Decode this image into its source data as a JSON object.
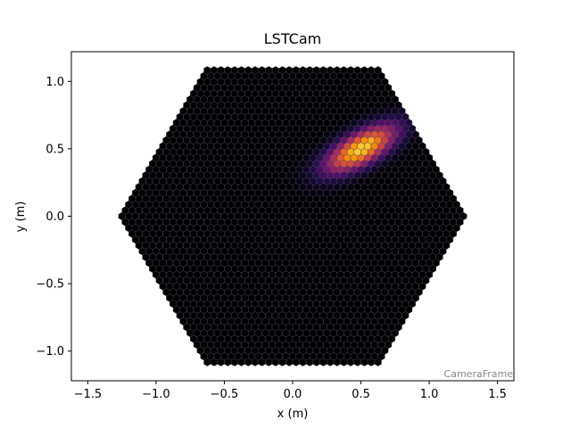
{
  "chart_data": {
    "type": "heatmap",
    "title": "LSTCam",
    "xlabel": "x  (m)",
    "ylabel": "y  (m)",
    "xlim": [
      -1.62,
      1.62
    ],
    "ylim": [
      -1.22,
      1.22
    ],
    "x_ticks": [
      -1.5,
      -1.0,
      -0.5,
      0.0,
      0.5,
      1.0,
      1.5
    ],
    "x_tick_labels": [
      "−1.5",
      "−1.0",
      "−0.5",
      "0.0",
      "0.5",
      "1.0",
      "1.5"
    ],
    "y_ticks": [
      1.0,
      0.5,
      0.0,
      -0.5,
      -1.0
    ],
    "y_tick_labels": [
      "1.0",
      "0.5",
      "0.0",
      "−0.5",
      "−1.0"
    ],
    "frame_label": "CameraFrame",
    "camera": {
      "shape": "hexagon",
      "flat_to_flat_m": 2.2,
      "pixel_shape": "hexagon",
      "pixel_pitch_m": 0.05
    },
    "colormap": "inferno",
    "background_color": "#000004",
    "pixel_edge_color": "#4a4a4a",
    "image": {
      "description_values": "Gaussian shower blob, peak normalized intensity 1.0",
      "center": [
        0.5,
        0.5
      ],
      "sigma_long": 0.2,
      "sigma_short": 0.08,
      "angle_deg": 30,
      "peak_pixel": [
        0.56,
        0.55
      ],
      "peak_value": 1.0
    }
  }
}
